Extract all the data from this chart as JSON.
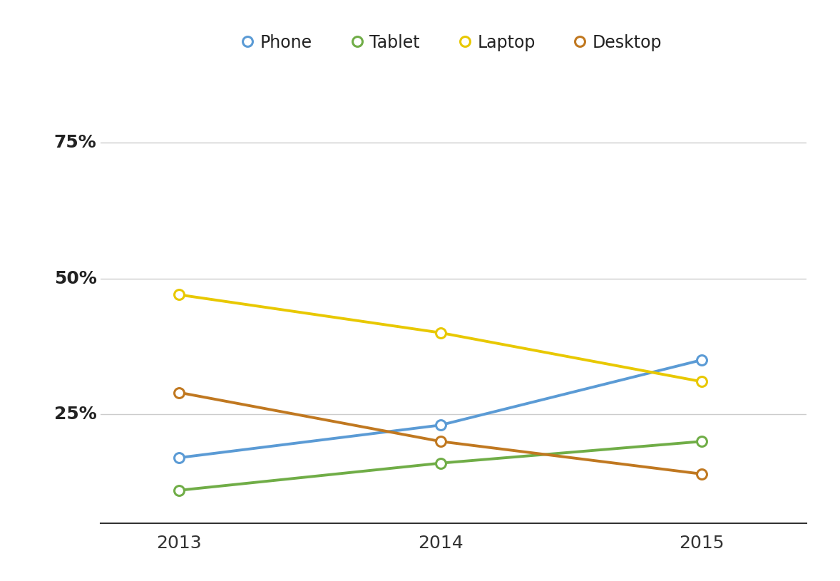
{
  "years": [
    2013,
    2014,
    2015
  ],
  "series": [
    {
      "label": "Phone",
      "values": [
        17,
        23,
        35
      ],
      "color": "#5B9BD5",
      "marker_face": "#ffffff",
      "marker_edge": "#5B9BD5"
    },
    {
      "label": "Tablet",
      "values": [
        11,
        16,
        20
      ],
      "color": "#70AD47",
      "marker_face": "#ffffff",
      "marker_edge": "#70AD47"
    },
    {
      "label": "Laptop",
      "values": [
        47,
        40,
        31
      ],
      "color": "#E8C800",
      "marker_face": "#ffffff",
      "marker_edge": "#E8C800"
    },
    {
      "label": "Desktop",
      "values": [
        29,
        20,
        14
      ],
      "color": "#C07820",
      "marker_face": "#ffffff",
      "marker_edge": "#C07820"
    }
  ],
  "yticks": [
    25,
    50,
    75
  ],
  "ytick_labels": [
    "25%",
    "50%",
    "75%"
  ],
  "ylim": [
    5,
    82
  ],
  "xlim": [
    2012.7,
    2015.4
  ],
  "xticks": [
    2013,
    2014,
    2015
  ],
  "background_color": "#ffffff",
  "grid_color": "#cccccc",
  "line_width": 2.8,
  "marker_size": 10,
  "marker_edge_width": 2.2,
  "legend_fontsize": 17,
  "tick_fontsize": 18
}
